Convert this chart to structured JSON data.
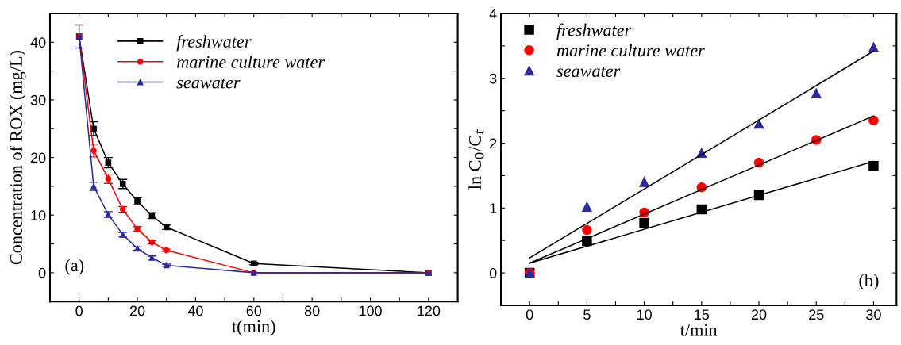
{
  "chart_data": [
    {
      "type": "line",
      "xlabel": "t(min)",
      "ylabel": "Concentration of ROX (mg/L)",
      "annotations": [
        "(a)"
      ],
      "x": [
        0,
        5,
        10,
        15,
        20,
        25,
        30,
        60,
        120
      ],
      "xlim": [
        -10,
        130
      ],
      "ylim": [
        -5,
        45
      ],
      "xticks": [
        0,
        {
          "value": 10,
          "label": null
        },
        20,
        {
          "value": 30,
          "label": null
        },
        40,
        {
          "value": 50,
          "label": null
        },
        60,
        {
          "value": 70,
          "label": null
        },
        80,
        {
          "value": 90,
          "label": null
        },
        100,
        {
          "value": 110,
          "label": null
        },
        120
      ],
      "yticks": [
        {
          "value": -5,
          "label": null
        },
        0,
        {
          "value": 5,
          "label": null
        },
        10,
        {
          "value": 15,
          "label": null
        },
        20,
        {
          "value": 25,
          "label": null
        },
        30,
        {
          "value": 35,
          "label": null
        },
        40,
        {
          "value": 45,
          "label": null
        }
      ],
      "legend": "top",
      "grid": false,
      "line_style": "solid",
      "series": [
        {
          "name": "freshwater",
          "color": "#000000",
          "marker": "square",
          "values": [
            41,
            25,
            19.1,
            15.4,
            12.4,
            9.9,
            7.9,
            1.6,
            0
          ],
          "errors": [
            null,
            1.2,
            0.9,
            0.8,
            0.6,
            0.5,
            0.4,
            0.2,
            null
          ]
        },
        {
          "name": "marine culture water",
          "color": "#ff0000",
          "marker": "circle",
          "values": [
            41,
            21.2,
            16.3,
            11,
            7.6,
            5.3,
            3.9,
            0,
            0
          ],
          "errors": [
            null,
            1.1,
            0.8,
            0.5,
            0.4,
            0.3,
            0.2,
            null,
            null
          ]
        },
        {
          "name": "seawater",
          "color": "#2b2b9c",
          "marker": "triangle",
          "values": [
            41,
            15,
            10.1,
            6.6,
            4.2,
            2.6,
            1.3,
            0,
            0
          ],
          "errors": [
            2,
            0.7,
            0.5,
            0.4,
            0.3,
            0.3,
            0.2,
            null,
            null
          ]
        }
      ]
    },
    {
      "type": "scatter",
      "xlabel": "t/min",
      "ylabel": "ln C$_{0}$/C$_{t}$",
      "annotations": [
        "(b)"
      ],
      "xlim": [
        -2.5,
        32
      ],
      "ylim": [
        -0.5,
        4
      ],
      "xticks": [
        0,
        {
          "value": 2.5,
          "label": null
        },
        5,
        {
          "value": 7.5,
          "label": null
        },
        10,
        {
          "value": 12.5,
          "label": null
        },
        15,
        {
          "value": 17.5,
          "label": null
        },
        20,
        {
          "value": 22.5,
          "label": null
        },
        25,
        {
          "value": 27.5,
          "label": null
        },
        30
      ],
      "yticks": [
        {
          "value": -0.5,
          "label": null
        },
        0,
        {
          "value": 0.5,
          "label": null
        },
        1,
        {
          "value": 1.5,
          "label": null
        },
        2,
        {
          "value": 2.5,
          "label": null
        },
        3,
        {
          "value": 3.5,
          "label": null
        },
        4
      ],
      "legend": "top left",
      "grid": false,
      "series": [
        {
          "name": "freshwater",
          "color": "#000000",
          "marker": "square",
          "x": [
            0,
            5,
            10,
            15,
            20,
            30
          ],
          "values": [
            0,
            0.49,
            0.77,
            0.98,
            1.2,
            1.65
          ]
        },
        {
          "name": "marine culture water",
          "color": "#ff0000",
          "marker": "circle",
          "x": [
            0,
            5,
            10,
            15,
            20,
            25,
            30
          ],
          "values": [
            0,
            0.66,
            0.93,
            1.32,
            1.7,
            2.05,
            2.35
          ]
        },
        {
          "name": "seawater",
          "color": "#2b2b9c",
          "marker": "triangle",
          "x": [
            0,
            5,
            10,
            15,
            20,
            25,
            30
          ],
          "values": [
            0,
            1.02,
            1.4,
            1.85,
            2.3,
            2.77,
            3.48
          ]
        },
        {
          "type": "line",
          "color": "#000000",
          "marker": "none",
          "line_style": "solid",
          "x": [
            0,
            30
          ],
          "values": [
            0.15,
            1.72
          ]
        },
        {
          "type": "line",
          "color": "#000000",
          "marker": "none",
          "line_style": "solid",
          "x": [
            0,
            30
          ],
          "values": [
            0.15,
            2.42
          ]
        },
        {
          "type": "line",
          "color": "#000000",
          "marker": "none",
          "line_style": "solid",
          "x": [
            0,
            30
          ],
          "values": [
            0.23,
            3.42
          ]
        }
      ]
    }
  ]
}
